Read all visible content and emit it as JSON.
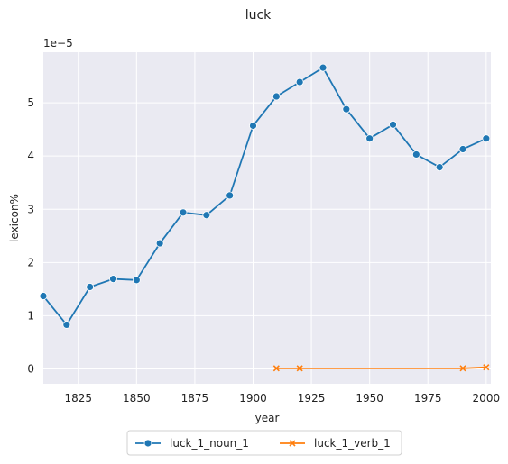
{
  "chart_data": {
    "type": "line",
    "title": "luck",
    "xlabel": "year",
    "ylabel": "lexicon%",
    "y_offset_label": "1e−5",
    "xlim": [
      1810,
      2002
    ],
    "ylim": [
      -0.28,
      5.95
    ],
    "xticks": [
      1825,
      1850,
      1875,
      1900,
      1925,
      1950,
      1975,
      2000
    ],
    "yticks": [
      0,
      1,
      2,
      3,
      4,
      5
    ],
    "grid": true,
    "legend_position": "bottom-center",
    "series": [
      {
        "name": "luck_1_noun_1",
        "color": "#1f77b4",
        "marker": "circle",
        "x": [
          1810,
          1820,
          1830,
          1840,
          1850,
          1860,
          1870,
          1880,
          1890,
          1900,
          1910,
          1920,
          1930,
          1940,
          1950,
          1960,
          1970,
          1980,
          1990,
          2000
        ],
        "y": [
          1.37,
          0.83,
          1.54,
          1.69,
          1.67,
          2.36,
          2.94,
          2.89,
          3.26,
          4.57,
          5.12,
          5.39,
          5.66,
          4.88,
          4.33,
          4.59,
          4.03,
          3.79,
          4.13,
          4.33
        ]
      },
      {
        "name": "luck_1_verb_1",
        "color": "#ff7f0e",
        "marker": "x",
        "x": [
          1910,
          1920,
          1990,
          2000
        ],
        "y": [
          0.01,
          0.01,
          0.01,
          0.03
        ]
      }
    ]
  }
}
